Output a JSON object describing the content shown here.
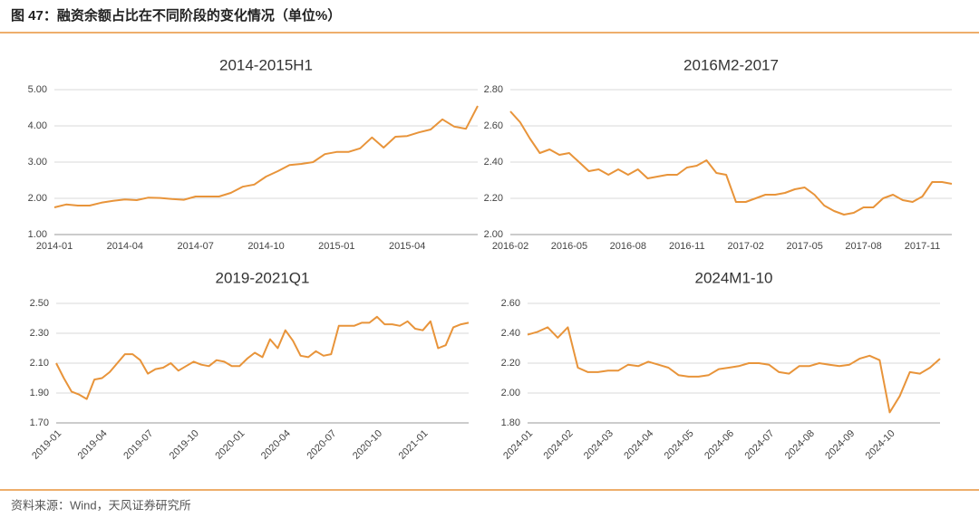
{
  "figure_title": "图 47：融资余额占比在不同阶段的变化情况（单位%）",
  "source": "资料来源：Wind，天风证券研究所",
  "chart_data": [
    {
      "type": "line",
      "title": "2014-2015H1",
      "color": "#e8943a",
      "grid": true,
      "categories": [
        "2014-01",
        null,
        null,
        null,
        null,
        null,
        "2014-04",
        null,
        null,
        null,
        null,
        null,
        "2014-07",
        null,
        null,
        null,
        null,
        null,
        "2014-10",
        null,
        null,
        null,
        null,
        null,
        "2015-01",
        null,
        null,
        null,
        null,
        null,
        "2015-04",
        null,
        null,
        null,
        null,
        null,
        null
      ],
      "values": [
        1.75,
        1.83,
        1.8,
        1.8,
        1.88,
        1.93,
        1.97,
        1.95,
        2.02,
        2.01,
        1.98,
        1.96,
        2.05,
        2.05,
        2.05,
        2.15,
        2.32,
        2.38,
        2.6,
        2.75,
        2.92,
        2.95,
        3.0,
        3.22,
        3.28,
        3.28,
        3.38,
        3.68,
        3.4,
        3.7,
        3.72,
        3.82,
        3.9,
        4.18,
        3.98,
        3.92,
        4.55
      ],
      "ylim": [
        1,
        5
      ],
      "yticks": [
        {
          "value": 1,
          "label": "1.00"
        },
        {
          "value": 2,
          "label": "2.00"
        },
        {
          "value": 3,
          "label": "3.00"
        },
        {
          "value": 4,
          "label": "4.00"
        },
        {
          "value": 5,
          "label": "5.00"
        }
      ]
    },
    {
      "type": "line",
      "title": "2016M2-2017",
      "color": "#e8943a",
      "grid": true,
      "categories": [
        "2016-02",
        null,
        null,
        null,
        null,
        null,
        "2016-05",
        null,
        null,
        null,
        null,
        null,
        "2016-08",
        null,
        null,
        null,
        null,
        null,
        "2016-11",
        null,
        null,
        null,
        null,
        null,
        "2017-02",
        null,
        null,
        null,
        null,
        null,
        "2017-05",
        null,
        null,
        null,
        null,
        null,
        "2017-08",
        null,
        null,
        null,
        null,
        null,
        "2017-11",
        null,
        null,
        null
      ],
      "values": [
        2.68,
        2.62,
        2.53,
        2.45,
        2.47,
        2.44,
        2.45,
        2.4,
        2.35,
        2.36,
        2.33,
        2.36,
        2.33,
        2.36,
        2.31,
        2.32,
        2.33,
        2.33,
        2.37,
        2.38,
        2.41,
        2.34,
        2.33,
        2.18,
        2.18,
        2.2,
        2.22,
        2.22,
        2.23,
        2.25,
        2.26,
        2.22,
        2.16,
        2.13,
        2.11,
        2.12,
        2.15,
        2.15,
        2.2,
        2.22,
        2.19,
        2.18,
        2.21,
        2.29,
        2.29,
        2.28
      ],
      "ylim": [
        2,
        2.8
      ],
      "yticks": [
        {
          "value": 2,
          "label": "2.00"
        },
        {
          "value": 2.2,
          "label": "2.20"
        },
        {
          "value": 2.4,
          "label": "2.40"
        },
        {
          "value": 2.6,
          "label": "2.60"
        },
        {
          "value": 2.8,
          "label": "2.80"
        }
      ]
    },
    {
      "type": "line",
      "title": "2019-2021Q1",
      "color": "#e8943a",
      "grid": true,
      "categories": [
        "2019-01",
        null,
        null,
        null,
        null,
        null,
        "2019-04",
        null,
        null,
        null,
        null,
        null,
        "2019-07",
        null,
        null,
        null,
        null,
        null,
        "2019-10",
        null,
        null,
        null,
        null,
        null,
        "2020-01",
        null,
        null,
        null,
        null,
        null,
        "2020-04",
        null,
        null,
        null,
        null,
        null,
        "2020-07",
        null,
        null,
        null,
        null,
        null,
        "2020-10",
        null,
        null,
        null,
        null,
        null,
        "2021-01",
        null,
        null,
        null,
        null,
        null,
        null
      ],
      "values": [
        2.1,
        2.0,
        1.91,
        1.89,
        1.86,
        1.99,
        2.0,
        2.04,
        2.1,
        2.16,
        2.16,
        2.12,
        2.03,
        2.06,
        2.07,
        2.1,
        2.05,
        2.08,
        2.11,
        2.09,
        2.08,
        2.12,
        2.11,
        2.08,
        2.08,
        2.13,
        2.17,
        2.14,
        2.26,
        2.2,
        2.32,
        2.25,
        2.15,
        2.14,
        2.18,
        2.15,
        2.16,
        2.35,
        2.35,
        2.35,
        2.37,
        2.37,
        2.41,
        2.36,
        2.36,
        2.35,
        2.38,
        2.33,
        2.32,
        2.38,
        2.2,
        2.22,
        2.34,
        2.36,
        2.37
      ],
      "ylim": [
        1.7,
        2.5
      ],
      "yticks": [
        {
          "value": 1.7,
          "label": "1.70"
        },
        {
          "value": 1.9,
          "label": "1.90"
        },
        {
          "value": 2.1,
          "label": "2.10"
        },
        {
          "value": 2.3,
          "label": "2.30"
        },
        {
          "value": 2.5,
          "label": "2.50"
        }
      ]
    },
    {
      "type": "line",
      "title": "2024M1-10",
      "color": "#e8943a",
      "grid": true,
      "categories": [
        "2024-01",
        null,
        null,
        null,
        "2024-02",
        null,
        null,
        null,
        "2024-03",
        null,
        null,
        null,
        "2024-04",
        null,
        null,
        null,
        "2024-05",
        null,
        null,
        null,
        "2024-06",
        null,
        null,
        null,
        "2024-07",
        null,
        null,
        null,
        "2024-08",
        null,
        null,
        null,
        "2024-09",
        null,
        null,
        null,
        "2024-10",
        null,
        null,
        null,
        null,
        null
      ],
      "values": [
        2.39,
        2.41,
        2.44,
        2.37,
        2.44,
        2.17,
        2.14,
        2.14,
        2.15,
        2.15,
        2.19,
        2.18,
        2.21,
        2.19,
        2.17,
        2.12,
        2.11,
        2.11,
        2.12,
        2.16,
        2.17,
        2.18,
        2.2,
        2.2,
        2.19,
        2.14,
        2.13,
        2.18,
        2.18,
        2.2,
        2.19,
        2.18,
        2.19,
        2.23,
        2.25,
        2.22,
        1.87,
        1.98,
        2.14,
        2.13,
        2.17,
        2.23
      ],
      "ylim": [
        1.8,
        2.6
      ],
      "yticks": [
        {
          "value": 1.8,
          "label": "1.80"
        },
        {
          "value": 2,
          "label": "2.00"
        },
        {
          "value": 2.2,
          "label": "2.20"
        },
        {
          "value": 2.4,
          "label": "2.40"
        },
        {
          "value": 2.6,
          "label": "2.60"
        }
      ]
    }
  ]
}
